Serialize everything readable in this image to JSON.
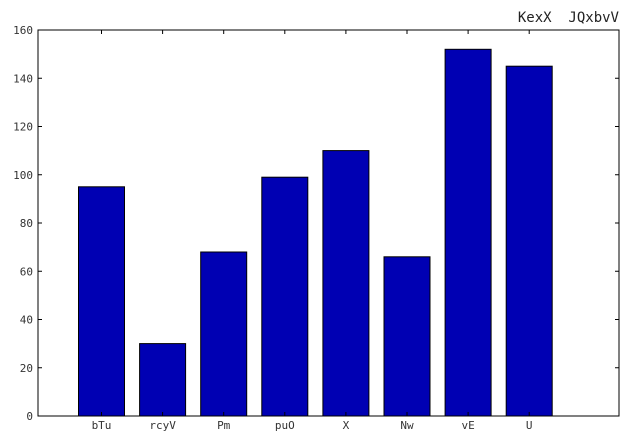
{
  "chart_data": {
    "type": "bar",
    "title": "KexX  JQxbvV",
    "xlabel": "",
    "ylabel": "",
    "categories": [
      "bTu",
      "rcyV",
      "Pm",
      "puO",
      "X",
      "Nw",
      "vE",
      "U"
    ],
    "values": [
      95,
      30,
      68,
      99,
      110,
      66,
      152,
      145
    ],
    "ylim": [
      0,
      160
    ],
    "yticks": [
      0,
      20,
      40,
      60,
      80,
      100,
      120,
      140,
      160
    ],
    "grid": false,
    "legend": "none",
    "colors": {
      "bar": "#0000b3",
      "axis": "#000000"
    }
  }
}
